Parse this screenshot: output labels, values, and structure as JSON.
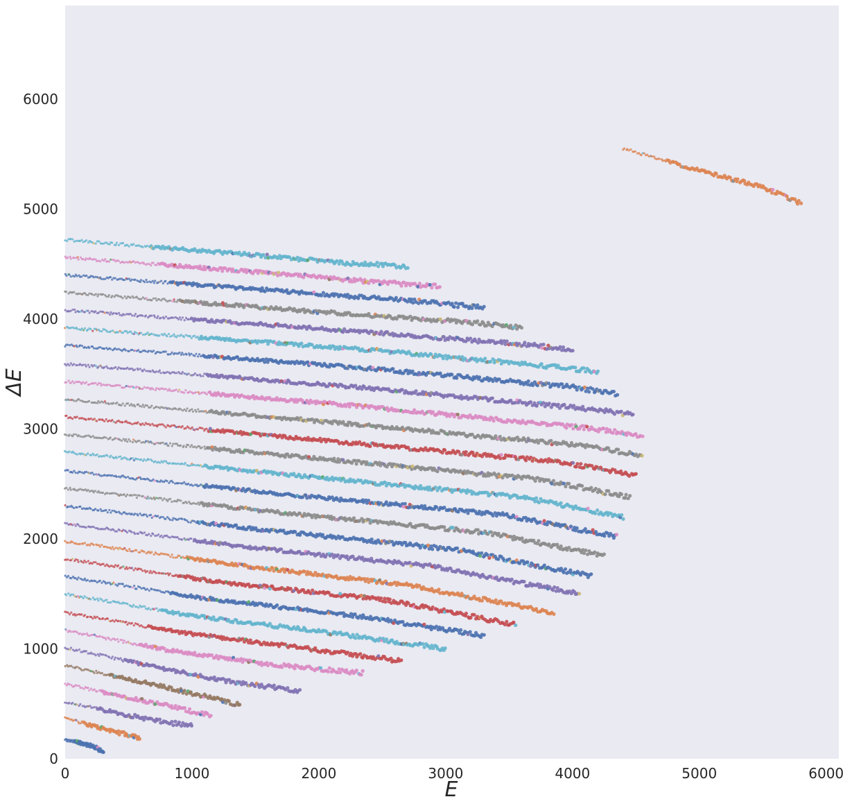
{
  "chart_data": {
    "type": "scatter",
    "title": "",
    "xlabel": "E",
    "ylabel": "ΔE",
    "xlim": [
      0,
      6100
    ],
    "ylim": [
      0,
      6850
    ],
    "xticks": [
      0,
      1000,
      2000,
      3000,
      4000,
      5000,
      6000
    ],
    "yticks": [
      0,
      1000,
      2000,
      3000,
      4000,
      5000,
      6000
    ],
    "xtick_labels": [
      "0",
      "1000",
      "2000",
      "3000",
      "4000",
      "5000",
      "6000"
    ],
    "ytick_labels": [
      "0",
      "1000",
      "2000",
      "3000",
      "4000",
      "5000",
      "6000"
    ],
    "grid": false,
    "legend": "none",
    "background": "#eaeaf2",
    "palette": [
      "#4c72b0",
      "#dd8452",
      "#55a868",
      "#c44e52",
      "#8172b3",
      "#937860",
      "#da8bc3",
      "#8c8c8c",
      "#ccb974",
      "#64b5cd"
    ],
    "bands": [
      {
        "color": "#4c72b0",
        "points": [
          [
            0,
            170
          ],
          [
            150,
            140
          ],
          [
            300,
            70
          ]
        ]
      },
      {
        "color": "#dd8452",
        "points": [
          [
            0,
            370
          ],
          [
            250,
            290
          ],
          [
            590,
            190
          ]
        ]
      },
      {
        "color": "#8172b3",
        "points": [
          [
            0,
            520
          ],
          [
            400,
            420
          ],
          [
            750,
            340
          ],
          [
            1000,
            300
          ]
        ]
      },
      {
        "color": "#da8bc3",
        "points": [
          [
            0,
            680
          ],
          [
            500,
            560
          ],
          [
            900,
            460
          ],
          [
            1150,
            390
          ]
        ]
      },
      {
        "color": "#937860",
        "points": [
          [
            0,
            850
          ],
          [
            600,
            700
          ],
          [
            1100,
            570
          ],
          [
            1380,
            490
          ]
        ]
      },
      {
        "color": "#8172b3",
        "points": [
          [
            0,
            1010
          ],
          [
            700,
            840
          ],
          [
            1300,
            700
          ],
          [
            1850,
            620
          ]
        ]
      },
      {
        "color": "#da8bc3",
        "points": [
          [
            0,
            1170
          ],
          [
            800,
            990
          ],
          [
            1600,
            860
          ],
          [
            2350,
            780
          ]
        ]
      },
      {
        "color": "#c44e52",
        "points": [
          [
            0,
            1330
          ],
          [
            900,
            1150
          ],
          [
            1800,
            1020
          ],
          [
            2650,
            890
          ]
        ]
      },
      {
        "color": "#64b5cd",
        "points": [
          [
            0,
            1500
          ],
          [
            1000,
            1300
          ],
          [
            2000,
            1160
          ],
          [
            3000,
            1000
          ]
        ]
      },
      {
        "color": "#4c72b0",
        "points": [
          [
            0,
            1660
          ],
          [
            1100,
            1460
          ],
          [
            2300,
            1300
          ],
          [
            3300,
            1120
          ]
        ]
      },
      {
        "color": "#c44e52",
        "points": [
          [
            0,
            1820
          ],
          [
            1200,
            1610
          ],
          [
            2500,
            1450
          ],
          [
            3550,
            1220
          ]
        ]
      },
      {
        "color": "#dd8452",
        "points": [
          [
            0,
            1980
          ],
          [
            1300,
            1770
          ],
          [
            2700,
            1580
          ],
          [
            3850,
            1330
          ]
        ]
      },
      {
        "color": "#8172b3",
        "points": [
          [
            0,
            2140
          ],
          [
            1400,
            1930
          ],
          [
            2900,
            1750
          ],
          [
            4050,
            1500
          ]
        ]
      },
      {
        "color": "#4c72b0",
        "points": [
          [
            0,
            2300
          ],
          [
            1500,
            2090
          ],
          [
            3100,
            1900
          ],
          [
            4150,
            1660
          ]
        ]
      },
      {
        "color": "#8c8c8c",
        "points": [
          [
            0,
            2460
          ],
          [
            1600,
            2250
          ],
          [
            3300,
            2060
          ],
          [
            4250,
            1850
          ]
        ]
      },
      {
        "color": "#4c72b0",
        "points": [
          [
            0,
            2620
          ],
          [
            1700,
            2410
          ],
          [
            3450,
            2220
          ],
          [
            4350,
            2020
          ]
        ]
      },
      {
        "color": "#64b5cd",
        "points": [
          [
            0,
            2790
          ],
          [
            1800,
            2580
          ],
          [
            3600,
            2380
          ],
          [
            4400,
            2200
          ]
        ]
      },
      {
        "color": "#8c8c8c",
        "points": [
          [
            0,
            2950
          ],
          [
            1900,
            2740
          ],
          [
            3750,
            2540
          ],
          [
            4450,
            2380
          ]
        ]
      },
      {
        "color": "#c44e52",
        "points": [
          [
            0,
            3110
          ],
          [
            2000,
            2900
          ],
          [
            3900,
            2700
          ],
          [
            4500,
            2580
          ]
        ]
      },
      {
        "color": "#8c8c8c",
        "points": [
          [
            0,
            3270
          ],
          [
            2100,
            3060
          ],
          [
            4000,
            2860
          ],
          [
            4550,
            2760
          ]
        ]
      },
      {
        "color": "#da8bc3",
        "points": [
          [
            0,
            3430
          ],
          [
            2200,
            3220
          ],
          [
            4100,
            3010
          ],
          [
            4550,
            2940
          ]
        ]
      },
      {
        "color": "#8172b3",
        "points": [
          [
            0,
            3590
          ],
          [
            2300,
            3380
          ],
          [
            4150,
            3180
          ],
          [
            4480,
            3130
          ]
        ]
      },
      {
        "color": "#4c72b0",
        "points": [
          [
            0,
            3760
          ],
          [
            2400,
            3550
          ],
          [
            4000,
            3380
          ],
          [
            4350,
            3320
          ]
        ]
      },
      {
        "color": "#64b5cd",
        "points": [
          [
            0,
            3920
          ],
          [
            2500,
            3710
          ],
          [
            3900,
            3560
          ],
          [
            4200,
            3520
          ]
        ]
      },
      {
        "color": "#8172b3",
        "points": [
          [
            0,
            4080
          ],
          [
            2400,
            3880
          ],
          [
            3600,
            3770
          ],
          [
            4000,
            3720
          ]
        ]
      },
      {
        "color": "#8c8c8c",
        "points": [
          [
            0,
            4240
          ],
          [
            2300,
            4040
          ],
          [
            3200,
            3970
          ],
          [
            3600,
            3920
          ]
        ]
      },
      {
        "color": "#4c72b0",
        "points": [
          [
            0,
            4400
          ],
          [
            2100,
            4220
          ],
          [
            2900,
            4150
          ],
          [
            3300,
            4100
          ]
        ]
      },
      {
        "color": "#da8bc3",
        "points": [
          [
            0,
            4560
          ],
          [
            1800,
            4400
          ],
          [
            2500,
            4330
          ],
          [
            2950,
            4300
          ]
        ]
      },
      {
        "color": "#64b5cd",
        "points": [
          [
            0,
            4720
          ],
          [
            1500,
            4580
          ],
          [
            2200,
            4510
          ],
          [
            2700,
            4480
          ]
        ]
      },
      {
        "color": "#dd8452",
        "points": [
          [
            4400,
            5550
          ],
          [
            5000,
            5350
          ],
          [
            5500,
            5200
          ],
          [
            5800,
            5050
          ]
        ]
      }
    ]
  }
}
